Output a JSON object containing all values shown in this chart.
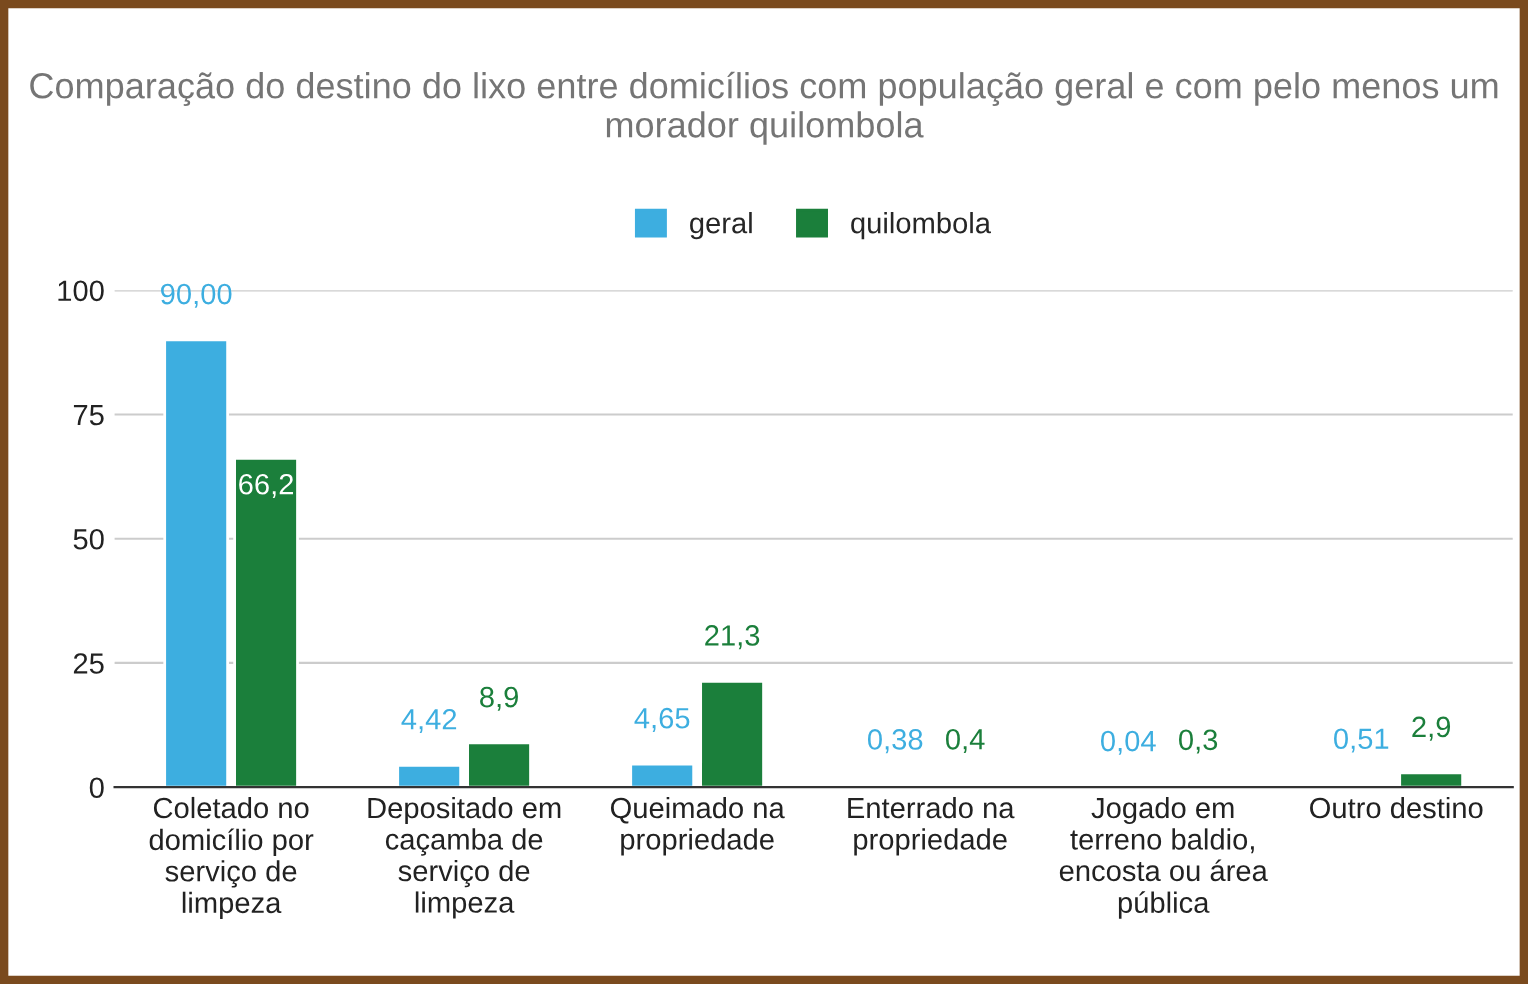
{
  "chart_data": {
    "type": "bar",
    "title": "Comparação do destino do lixo entre domicílios com população geral e com pelo menos um morador quilombola",
    "categories": [
      "Coletado no domicílio por serviço de limpeza",
      "Depositado em caçamba de serviço de limpeza",
      "Queimado na propriedade",
      "Enterrado na propriedade",
      "Jogado em terreno baldio, encosta ou área pública",
      "Outro destino"
    ],
    "series": [
      {
        "name": "geral",
        "color": "#3daee0",
        "values": [
          90.0,
          4.42,
          4.65,
          0.38,
          0.04,
          0.51
        ],
        "value_labels": [
          "90,00",
          "4,42",
          "4,65",
          "0,38",
          "0,04",
          "0,51"
        ]
      },
      {
        "name": "quilombola",
        "color": "#1b7f3b",
        "values": [
          66.2,
          8.9,
          21.3,
          0.4,
          0.3,
          2.9
        ],
        "value_labels": [
          "66,2",
          "8,9",
          "21,3",
          "0,4",
          "0,3",
          "2,9"
        ]
      }
    ],
    "ylim": [
      0,
      100
    ],
    "yticks": [
      0,
      25,
      50,
      75,
      100
    ],
    "grid": "y",
    "legend": "top"
  }
}
